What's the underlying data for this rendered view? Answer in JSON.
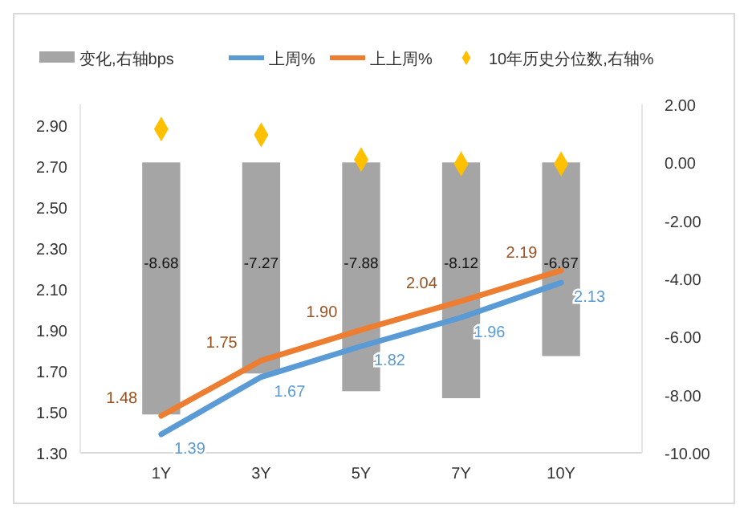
{
  "chart_data": {
    "type": "bar",
    "categories": [
      "1Y",
      "3Y",
      "5Y",
      "7Y",
      "10Y"
    ],
    "series": [
      {
        "name": "变化,右轴bps",
        "axis": "y2",
        "color": "#a5a5a5",
        "values": [
          -8.68,
          -7.27,
          -7.88,
          -8.12,
          -6.67
        ],
        "value_labels": [
          "-8.68",
          "-7.27",
          "-7.88",
          "-8.12",
          "-6.67"
        ]
      },
      {
        "name": "上周%",
        "type": "line",
        "marker": "none",
        "color": "#5b9bd5",
        "values": [
          1.39,
          1.67,
          1.82,
          1.96,
          2.13
        ],
        "value_labels": [
          "1.39",
          "1.67",
          "1.82",
          "1.96",
          "2.13"
        ]
      },
      {
        "name": "上上周%",
        "type": "line",
        "marker": "none",
        "color": "#ed7d31",
        "values": [
          1.48,
          1.75,
          1.9,
          2.04,
          2.19
        ],
        "value_labels": [
          "1.48",
          "1.75",
          "1.90",
          "2.04",
          "2.19"
        ]
      },
      {
        "name": "10年历史分位数,右轴%",
        "type": "scatter",
        "axis": "y2",
        "color": "#ffc000",
        "values": [
          1.15,
          0.95,
          0.1,
          -0.05,
          -0.05
        ]
      }
    ],
    "ylim": [
      1.3,
      3.0
    ],
    "yticks": [
      "1.30",
      "1.50",
      "1.70",
      "1.90",
      "2.10",
      "2.30",
      "2.50",
      "2.70",
      "2.90"
    ],
    "y2lim": [
      -10,
      2
    ],
    "y2ticks": [
      "-10.00",
      "-8.00",
      "-6.00",
      "-4.00",
      "-2.00",
      "0.00",
      "2.00"
    ],
    "legend": "top",
    "grid": false,
    "marker": "diamond"
  }
}
